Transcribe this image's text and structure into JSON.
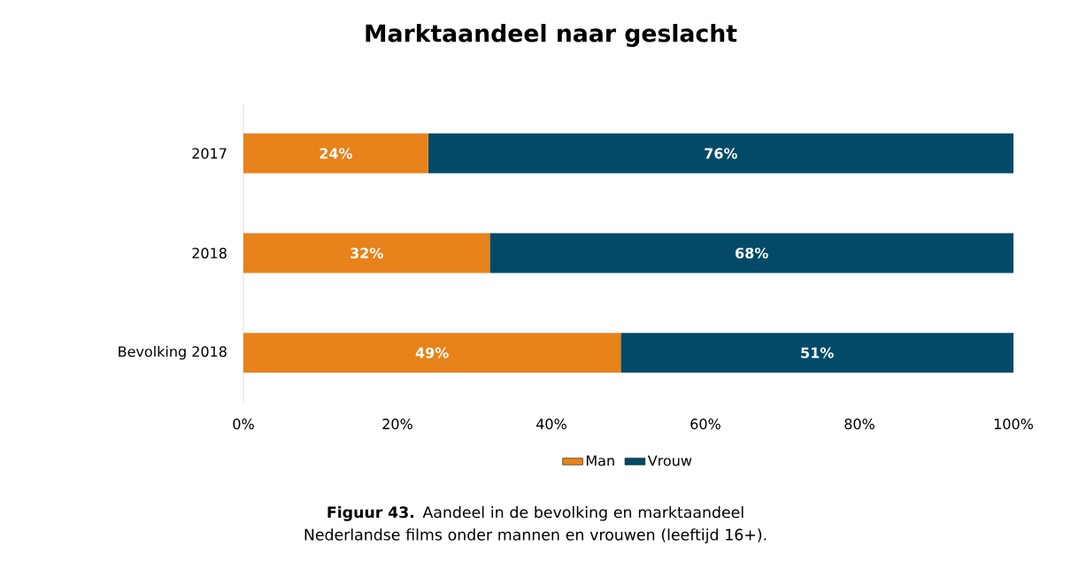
{
  "chart_data": {
    "type": "bar",
    "orientation": "horizontal",
    "stacked": true,
    "title": "Marktaandeel naar geslacht",
    "categories": [
      "2017",
      "2018",
      "Bevolking 2018"
    ],
    "series": [
      {
        "name": "Man",
        "color": "#e8821a",
        "values": [
          24,
          32,
          49
        ],
        "value_labels": [
          "24%",
          "32%",
          "49%"
        ]
      },
      {
        "name": "Vrouw",
        "color": "#034a68",
        "values": [
          76,
          68,
          51
        ],
        "value_labels": [
          "76%",
          "68%",
          "51%"
        ]
      }
    ],
    "xlim": [
      0,
      100
    ],
    "xticks": [
      {
        "value": 0,
        "label": "0%"
      },
      {
        "value": 20,
        "label": "20%"
      },
      {
        "value": 40,
        "label": "40%"
      },
      {
        "value": 60,
        "label": "60%"
      },
      {
        "value": 80,
        "label": "80%"
      },
      {
        "value": 100,
        "label": "100%"
      }
    ],
    "legend": "bottom",
    "annotations": [
      "**Figuur 43.** Aandeel in de bevolking en marktaandeel Nederlandse films onder mannen en vrouwen (leeftijd 16+)."
    ]
  }
}
